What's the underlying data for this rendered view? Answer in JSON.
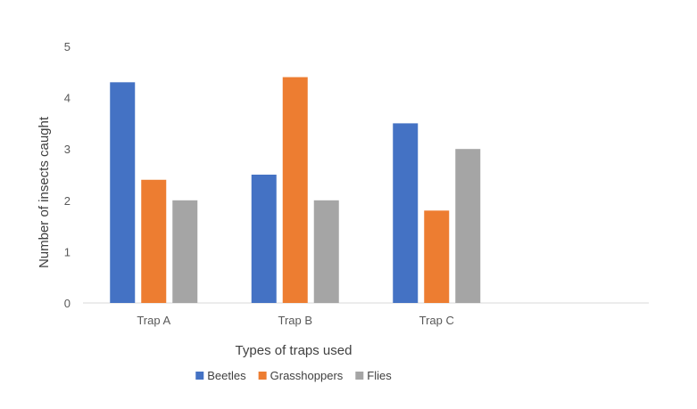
{
  "chart_data": {
    "type": "bar",
    "title": "",
    "xlabel": "Types of traps used",
    "ylabel": "Number of insects caught",
    "ylim": [
      0,
      5
    ],
    "yticks": [
      0,
      1,
      2,
      3,
      4,
      5
    ],
    "categories": [
      "Trap A",
      "Trap B",
      "Trap C"
    ],
    "slots": 4,
    "grid": false,
    "legend_position": "bottom",
    "series": [
      {
        "name": "Beetles",
        "color": "#4472C4",
        "values": [
          4.3,
          2.5,
          3.5
        ]
      },
      {
        "name": "Grasshoppers",
        "color": "#ED7D31",
        "values": [
          2.4,
          4.4,
          1.8
        ]
      },
      {
        "name": "Flies",
        "color": "#A5A5A5",
        "values": [
          2.0,
          2.0,
          3.0
        ]
      }
    ]
  }
}
